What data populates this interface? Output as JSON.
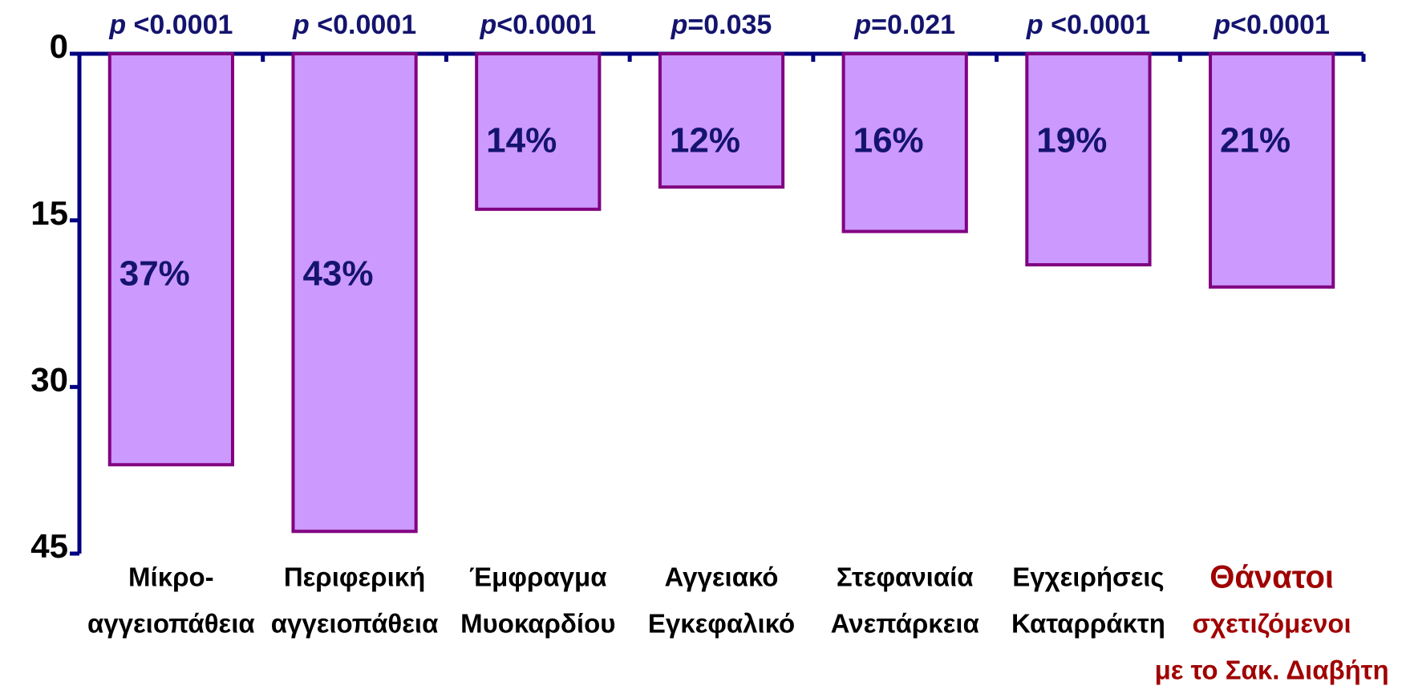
{
  "chart_data": {
    "type": "bar",
    "categories": [
      [
        "Μίκρο-",
        "αγγειοπάθεια"
      ],
      [
        "Περιφερική",
        "αγγειοπάθεια"
      ],
      [
        "Έμφραγμα",
        "Μυοκαρδίου"
      ],
      [
        "Αγγειακό",
        "Εγκεφαλικό"
      ],
      [
        "Στεφανιαία",
        "Ανεπάρκεια"
      ],
      [
        "Εγχειρήσεις",
        "Καταρράκτη"
      ],
      [
        "Θάνατοι",
        "σχετιζόμενοι",
        "με το Σακ. Διαβήτη"
      ]
    ],
    "category_label_colors": [
      "#000000",
      "#000000",
      "#000000",
      "#000000",
      "#000000",
      "#000000",
      "#a00000"
    ],
    "values": [
      37,
      43,
      14,
      12,
      16,
      19,
      21
    ],
    "value_labels": [
      "37%",
      "43%",
      "14%",
      "12%",
      "16%",
      "19%",
      "21%"
    ],
    "annotations": [
      {
        "symbol": "p",
        "text": " <0.0001"
      },
      {
        "symbol": "p",
        "text": " <0.0001"
      },
      {
        "symbol": "p",
        "text": "<0.0001"
      },
      {
        "symbol": "p",
        "text": "=0.035"
      },
      {
        "symbol": "p",
        "text": "=0.021"
      },
      {
        "symbol": "p",
        "text": " <0.0001"
      },
      {
        "symbol": "p",
        "text": "<0.0001"
      }
    ],
    "color": "#cc99ff",
    "edge_color": "#800080",
    "ylim": [
      0,
      45
    ],
    "yticks": [
      0,
      15,
      30,
      45
    ],
    "y_inverted": true,
    "grid": false
  }
}
